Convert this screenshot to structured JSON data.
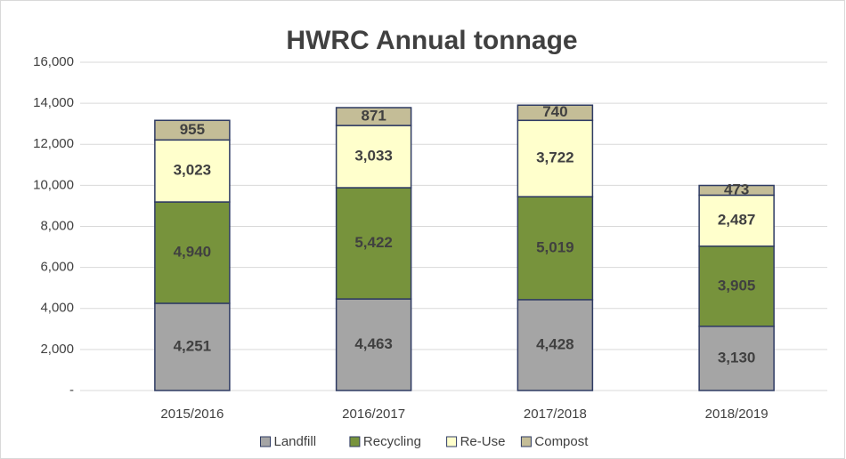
{
  "chart_data": {
    "type": "stacked_bar",
    "title": "HWRC Annual tonnage",
    "categories": [
      "2015/2016",
      "2016/2017",
      "2017/2018",
      "2018/2019"
    ],
    "series": [
      {
        "name": "Landfill",
        "color": "#a5a5a5",
        "values": [
          4251,
          4463,
          4428,
          3130
        ],
        "value_labels": [
          "4,251",
          "4,463",
          "4,428",
          "3,130"
        ]
      },
      {
        "name": "Recycling",
        "color": "#77933c",
        "values": [
          4940,
          5422,
          5019,
          3905
        ],
        "value_labels": [
          "4,940",
          "5,422",
          "5,019",
          "3,905"
        ]
      },
      {
        "name": "Re-Use",
        "color": "#ffffcc",
        "values": [
          3023,
          3033,
          3722,
          2487
        ],
        "value_labels": [
          "3,023",
          "3,033",
          "3,722",
          "2,487"
        ]
      },
      {
        "name": "Compost",
        "color": "#c4bd97",
        "values": [
          955,
          871,
          740,
          473
        ],
        "value_labels": [
          "955",
          "871",
          "740",
          "473"
        ]
      }
    ],
    "ylim": [
      0,
      16000
    ],
    "yticks": [
      {
        "value": 0,
        "label": "-"
      },
      {
        "value": 2000,
        "label": "2,000"
      },
      {
        "value": 4000,
        "label": "4,000"
      },
      {
        "value": 6000,
        "label": "6,000"
      },
      {
        "value": 8000,
        "label": "8,000"
      },
      {
        "value": 10000,
        "label": "10,000"
      },
      {
        "value": 12000,
        "label": "12,000"
      },
      {
        "value": 14000,
        "label": "14,000"
      },
      {
        "value": 16000,
        "label": "16,000"
      }
    ],
    "grid": true,
    "legend": "bottom"
  }
}
